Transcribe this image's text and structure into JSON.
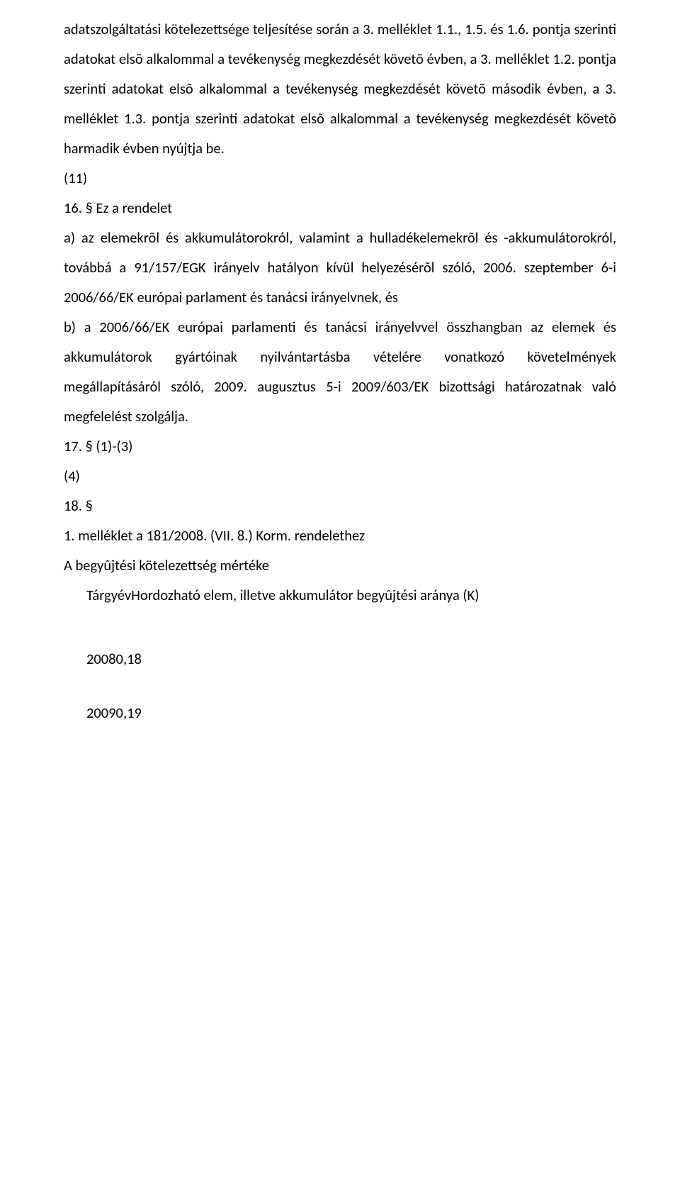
{
  "colors": {
    "text": "#000000",
    "background": "#ffffff"
  },
  "typography": {
    "font_family": "Calibri",
    "font_size_pt": 12,
    "line_height": 2.05
  },
  "p1": "adatszolgáltatási kötelezettsége teljesítése során a 3. melléklet 1.1., 1.5. és 1.6. pontja szerinti adatokat elsõ alkalommal a tevékenység megkezdését követõ évben, a 3. melléklet 1.2. pontja szerinti adatokat elsõ alkalommal a tevékenység megkezdését követõ második évben, a 3. melléklet 1.3. pontja szerinti adatokat elsõ alkalommal a tevékenység megkezdését követõ harmadik évben nyújtja be.",
  "p2": "(11)",
  "p3": "16. § Ez a rendelet",
  "p4": "a) az elemekrõl és akkumulátorokról, valamint a hulladékelemekrõl és -akkumulátorokról, továbbá a 91/157/EGK irányelv hatályon kívül helyezésérõl szóló, 2006. szeptember 6-i 2006/66/EK európai parlament és tanácsi irányelvnek, és",
  "p5": "b) a 2006/66/EK európai parlamenti és tanácsi irányelvvel összhangban az elemek és akkumulátorok gyártóinak nyilvántartásba vételére vonatkozó követelmények megállapításáról szóló, 2009. augusztus 5-i 2009/603/EK bizottsági határozatnak való megfelelést szolgálja.",
  "p6": "17. § (1)-(3)",
  "p7": "(4)",
  "p8": "18. §",
  "p9": "1. melléklet a 181/2008. (VII. 8.) Korm. rendelethez",
  "p10": "A begyûjtési kötelezettség mértéke",
  "p11": "TárgyévHordozható elem, illetve akkumulátor begyûjtési aránya (K)",
  "p12": "20080,18",
  "p13": "20090,19"
}
